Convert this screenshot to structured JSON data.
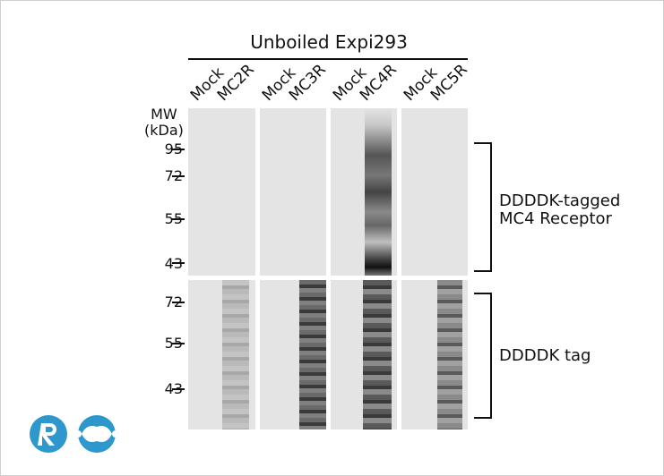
{
  "title": "Unboiled Expi293",
  "lane_groups": [
    {
      "mock": "Mock",
      "receptor": "MC2R"
    },
    {
      "mock": "Mock",
      "receptor": "MC3R"
    },
    {
      "mock": "Mock",
      "receptor": "MC4R"
    },
    {
      "mock": "Mock",
      "receptor": "MC5R"
    }
  ],
  "mw_label": [
    "MW",
    "(kDa)"
  ],
  "top_markers": [
    "95",
    "72",
    "55",
    "43"
  ],
  "bottom_markers": [
    "72",
    "55",
    "43"
  ],
  "top_blot_label": [
    "DDDDK-tagged",
    "MC4 Receptor"
  ],
  "bottom_blot_label": "DDDDK tag",
  "colors": {
    "logo": "#2e97cc",
    "blot_bg": "#e4e4e4",
    "band": "#2a2a2a"
  },
  "logo_icon": "r-logo-icon"
}
